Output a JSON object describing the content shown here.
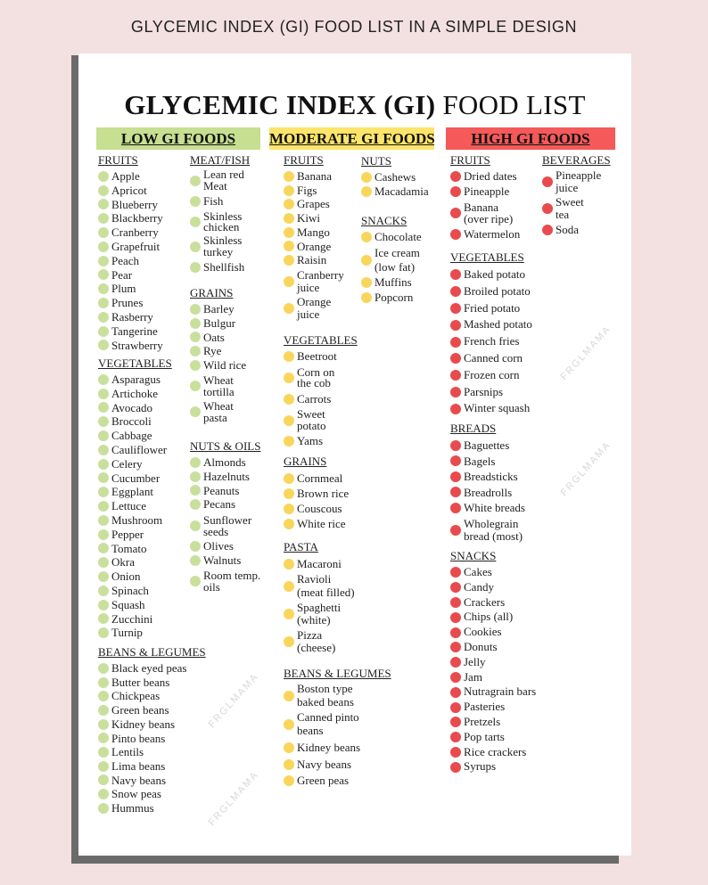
{
  "caption": "GLYCEMIC INDEX (GI) FOOD LIST IN A SIMPLE DESIGN",
  "title": {
    "bold": "GLYCEMIC INDEX (GI)",
    "light": "FOOD LIST"
  },
  "watermark": "FRGLMAMA",
  "colors": {
    "background": "#f3e0e1",
    "low": "#c6df91",
    "moderate": "#fce56a",
    "high": "#f55959",
    "low_dot": "#c9e09d",
    "moderate_dot": "#f8d65c",
    "high_dot": "#e84b4d"
  },
  "groups": [
    {
      "header": "LOW GI FOODS",
      "tone": "low",
      "columns": [
        [
          {
            "heading": "FRUITS",
            "items": [
              "Apple",
              "Apricot",
              "Blueberry",
              "Blackberry",
              "Cranberry",
              "Grapefruit",
              "Peach",
              "Pear",
              "Plum",
              "Prunes",
              "Rasberry",
              "Tangerine",
              "Strawberry"
            ]
          },
          {
            "heading": "VEGETABLES",
            "items": [
              "Asparagus",
              "Artichoke",
              "Avocado",
              "Broccoli",
              "Cabbage",
              "Cauliflower",
              "Celery",
              "Cucumber",
              "Eggplant",
              "Lettuce",
              "Mushroom",
              "Pepper",
              "Tomato",
              "Okra",
              "Onion",
              "Spinach",
              "Squash",
              "Zucchini",
              "Turnip"
            ]
          },
          {
            "heading": "BEANS & LEGUMES",
            "items": [
              "Black eyed peas",
              "Butter beans",
              "Chickpeas",
              "Green beans",
              "Kidney beans",
              "Pinto beans",
              "Lentils",
              "Lima beans",
              "Navy beans",
              "Snow peas",
              "Hummus"
            ]
          }
        ],
        [
          {
            "heading": "MEAT/FISH",
            "items": [
              "Lean red\nMeat",
              "Fish",
              "Skinless\nchicken",
              "Skinless\nturkey",
              "Shellfish"
            ]
          },
          {
            "heading": "GRAINS",
            "items": [
              "Barley",
              "Bulgur",
              "Oats",
              "Rye",
              "Wild rice",
              "Wheat\ntortilla",
              "Wheat\npasta"
            ]
          },
          {
            "heading": "NUTS & OILS",
            "items": [
              "Almonds",
              "Hazelnuts",
              "Peanuts",
              "Pecans",
              "Sunflower\nseeds",
              "Olives",
              "Walnuts",
              "Room temp.\noils"
            ]
          }
        ]
      ]
    },
    {
      "header": "MODERATE GI FOODS",
      "tone": "moderate",
      "columns": [
        [
          {
            "heading": "FRUITS",
            "items": [
              "Banana",
              "Figs",
              "Grapes",
              "Kiwi",
              "Mango",
              "Orange",
              "Raisin",
              "Cranberry\njuice",
              "Orange\njuice"
            ]
          },
          {
            "heading": "VEGETABLES",
            "items": [
              "Beetroot",
              "Corn on\nthe cob",
              "Carrots",
              "Sweet\npotato",
              "Yams"
            ]
          },
          {
            "heading": "GRAINS",
            "items": [
              "Cornmeal",
              "Brown rice",
              "Couscous",
              "White rice"
            ]
          },
          {
            "heading": "PASTA",
            "items": [
              "Macaroni",
              "Ravioli\n(meat filled)",
              "Spaghetti\n(white)",
              "Pizza\n(cheese)"
            ]
          },
          {
            "heading": "BEANS & LEGUMES",
            "items": [
              "Boston type\nbaked beans",
              "Canned pinto\nbeans",
              "Kidney beans",
              "Navy beans",
              "Green peas"
            ]
          }
        ],
        [
          {
            "heading": "NUTS",
            "items": [
              "Cashews",
              "Macadamia"
            ]
          },
          {
            "heading": "SNACKS",
            "items": [
              "Chocolate",
              "Ice cream\n(low fat)",
              "Muffins",
              "Popcorn"
            ]
          }
        ]
      ]
    },
    {
      "header": "HIGH GI FOODS",
      "tone": "high",
      "columns": [
        [
          {
            "heading": "FRUITS",
            "items": [
              "Dried dates",
              "Pineapple",
              "Banana\n(over ripe)",
              "Watermelon"
            ]
          },
          {
            "heading": "VEGETABLES",
            "items": [
              "Baked potato",
              "Broiled potato",
              "Fried potato",
              "Mashed potato",
              "French fries",
              "Canned corn",
              "Frozen corn",
              "Parsnips",
              "Winter squash"
            ]
          },
          {
            "heading": "BREADS",
            "items": [
              "Baguettes",
              "Bagels",
              "Breadsticks",
              "Breadrolls",
              "White breads",
              "Wholegrain\nbread (most)"
            ]
          },
          {
            "heading": "SNACKS",
            "items": [
              "Cakes",
              "Candy",
              "Crackers",
              "Chips (all)",
              "Cookies",
              "Donuts",
              "Jelly",
              "Jam",
              "Nutragrain bars",
              "Pasteries",
              "Pretzels",
              "Pop tarts",
              "Rice crackers",
              "Syrups"
            ]
          }
        ],
        [
          {
            "heading": "BEVERAGES",
            "items": [
              "Pineapple\njuice",
              "Sweet\ntea",
              "Soda"
            ]
          }
        ]
      ]
    }
  ]
}
